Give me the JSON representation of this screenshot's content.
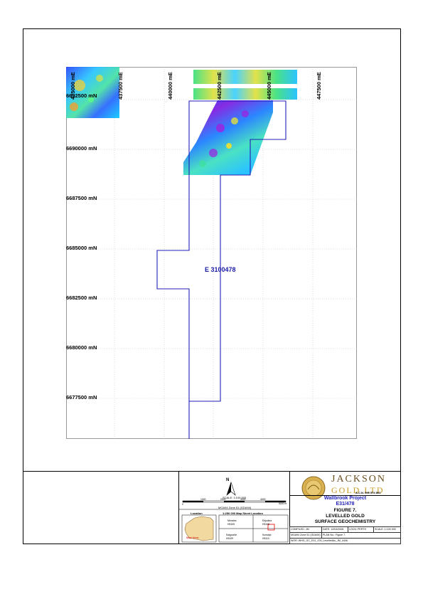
{
  "map": {
    "eastings": [
      "435000 mE",
      "437500 mE",
      "440000 mE",
      "442500 mE",
      "445000 mE",
      "447500 mE"
    ],
    "northings": [
      "6692500 mN",
      "6690000 mN",
      "6687500 mN",
      "6685000 mN",
      "6682500 mN",
      "6680000 mN",
      "6677500 mN"
    ],
    "tenement_label": "E 3100478",
    "boundary_color": "#1f1fb8"
  },
  "scale": {
    "ratio": "SCALE: 1:100 000",
    "ticks": [
      "0",
      "1000",
      "2000",
      "3000",
      "4000",
      "5000 m"
    ],
    "projection": "MGA94 Zone 51 (GDA94)"
  },
  "location": {
    "sheet_title": "1:250 000 Map Sheet Location",
    "label": "Location",
    "map_area_label": "Map Area",
    "sheets": [
      {
        "name": "Menzies",
        "code": "H5105"
      },
      {
        "name": "Edjudina",
        "code": "H5106"
      },
      {
        "name": "Kalgoorlie",
        "code": "H5109"
      },
      {
        "name": "Kurnalpi",
        "code": "H5110"
      }
    ]
  },
  "company": {
    "name_line1": "JACKSON",
    "name_line2": "GOLD LTD",
    "acn": "A.C.N. 009 574 861"
  },
  "project": {
    "name": "Wallbrook Project",
    "tenement": "E31/478"
  },
  "figure": {
    "number": "FIGURE 7.",
    "line1": "LEVELLED GOLD",
    "line2": "SURFACE GEOCHEMISTRY"
  },
  "info": {
    "compiled": "COMPILED: JM",
    "date": "DATE: 12/04/2006",
    "location": "LOCN: PERTH",
    "scale": "SCALE: 1:100 000",
    "datum": "MGA94 Zone 51 (GDA94)",
    "plan": "PLAN No.: Figure 7.",
    "file": "WOR: WHG_GC_E31_478_LevelledAu_JM_0406"
  },
  "colors": {
    "title_blue": "#1f1fb8",
    "gold": "#c89a20"
  }
}
